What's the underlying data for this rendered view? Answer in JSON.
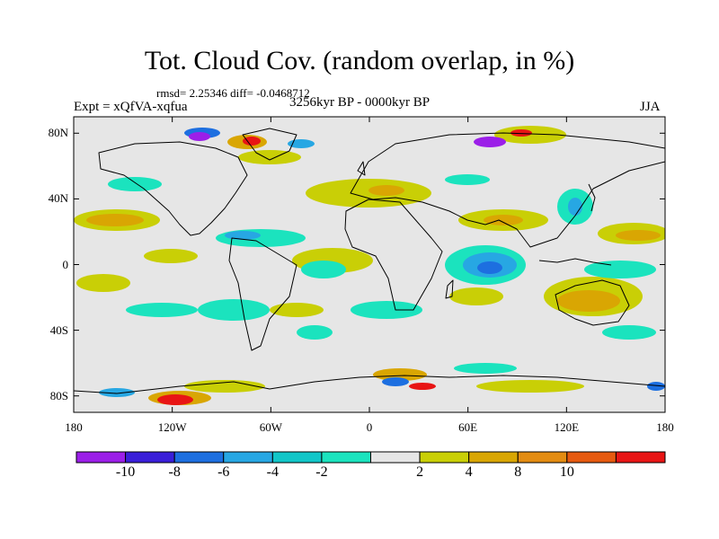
{
  "title": "Tot. Cloud Cov. (random overlap, in %)",
  "stats": "rmsd= 2.25346 diff= -0.0468712",
  "experiment": "Expt = xQfVA-xqfua",
  "period": "3256kyr BP - 0000kyr BP",
  "season": "JJA",
  "map": {
    "projection": "cylindrical equidistant",
    "lon_range": [
      -180,
      180
    ],
    "lat_range": [
      -90,
      90
    ],
    "background_color": "#e6e6e6",
    "coastline_color": "#000000",
    "lat_ticks": [
      {
        "value": 80,
        "label": "80N"
      },
      {
        "value": 40,
        "label": "40N"
      },
      {
        "value": 0,
        "label": "0"
      },
      {
        "value": -40,
        "label": "40S"
      },
      {
        "value": -80,
        "label": "80S"
      }
    ],
    "lon_ticks": [
      {
        "value": -180,
        "label": "180"
      },
      {
        "value": -120,
        "label": "120W"
      },
      {
        "value": -60,
        "label": "60W"
      },
      {
        "value": 0,
        "label": "0"
      },
      {
        "value": 60,
        "label": "60E"
      },
      {
        "value": 120,
        "label": "120E"
      },
      {
        "value": 180,
        "label": "180"
      }
    ]
  },
  "colorbar": {
    "colors": [
      "#9b1fe8",
      "#3a1fd9",
      "#1d6fe0",
      "#27a7e3",
      "#12c6c8",
      "#1be3be",
      "#e6e6e6",
      "#c9cf06",
      "#d9a603",
      "#e38c12",
      "#e65a10",
      "#e81515"
    ],
    "labels": [
      "-10",
      "-8",
      "-6",
      "-4",
      "-2",
      "2",
      "4",
      "8",
      "10"
    ]
  }
}
